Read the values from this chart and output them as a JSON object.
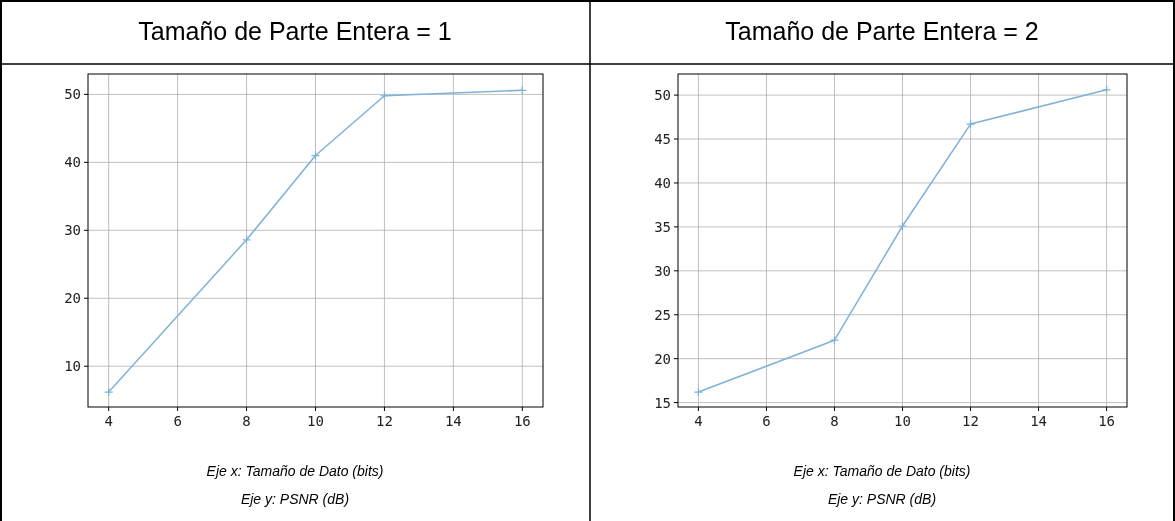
{
  "chart_data": [
    {
      "type": "line",
      "title": "Tamaño de Parte Entera = 1",
      "x": [
        4,
        8,
        10,
        12,
        16
      ],
      "series": [
        {
          "color": "#7fb2d8",
          "values": [
            6.2,
            28.6,
            41.0,
            49.8,
            50.6
          ]
        }
      ],
      "xlim": [
        3.4,
        16.6
      ],
      "ylim": [
        4,
        53
      ],
      "xticks": [
        4,
        6,
        8,
        10,
        12,
        14,
        16
      ],
      "yticks": [
        10,
        20,
        30,
        40,
        50
      ],
      "grid": true,
      "marker": "cross",
      "line_style": "solid",
      "annotations": [
        "Eje x: Tamaño de Dato (bits)",
        "Eje y: PSNR (dB)"
      ]
    },
    {
      "type": "line",
      "title": "Tamaño de Parte Entera = 2",
      "x": [
        4,
        8,
        10,
        12,
        16
      ],
      "series": [
        {
          "color": "#7fb2d8",
          "values": [
            16.2,
            22.1,
            35.1,
            46.7,
            50.6
          ]
        }
      ],
      "xlim": [
        3.4,
        16.6
      ],
      "ylim": [
        14.5,
        52.4
      ],
      "xticks": [
        4,
        6,
        8,
        10,
        12,
        14,
        16
      ],
      "yticks": [
        15,
        20,
        25,
        30,
        35,
        40,
        45,
        50
      ],
      "grid": true,
      "marker": "cross",
      "line_style": "solid",
      "annotations": [
        "Eje x: Tamaño de Dato (bits)",
        "Eje y: PSNR (dB)"
      ]
    }
  ]
}
